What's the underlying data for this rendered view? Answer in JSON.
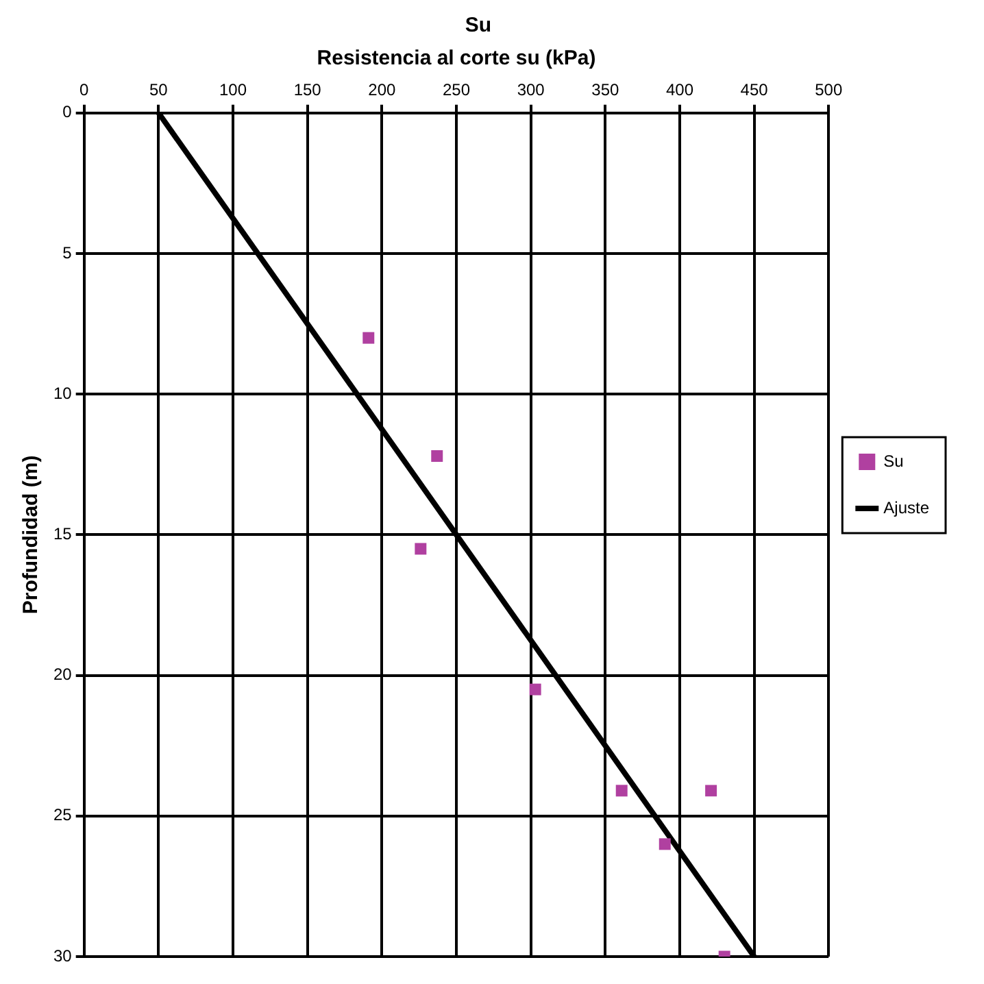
{
  "chart_data": {
    "type": "scatter",
    "title": "Su",
    "xlabel": "Resistencia al corte su (kPa)",
    "ylabel": "Profundidad (m)",
    "xlim": [
      0,
      500
    ],
    "xticks": [
      0,
      50,
      100,
      150,
      200,
      250,
      300,
      350,
      400,
      450,
      500
    ],
    "ylim": [
      30,
      0
    ],
    "yticks": [
      0,
      5,
      10,
      15,
      20,
      25,
      30
    ],
    "grid": true,
    "legend": "right",
    "series": [
      {
        "name": "Su",
        "type": "scatter",
        "marker": "square",
        "color": "#b040a0",
        "x": [
          191,
          237,
          226,
          303,
          361,
          421,
          390,
          430
        ],
        "values": [
          8.0,
          12.2,
          15.5,
          20.5,
          24.1,
          24.1,
          26.0,
          30.0
        ]
      },
      {
        "name": "Ajuste",
        "type": "line",
        "color": "#000000",
        "x": [
          50,
          450
        ],
        "values": [
          0,
          30
        ]
      }
    ]
  }
}
